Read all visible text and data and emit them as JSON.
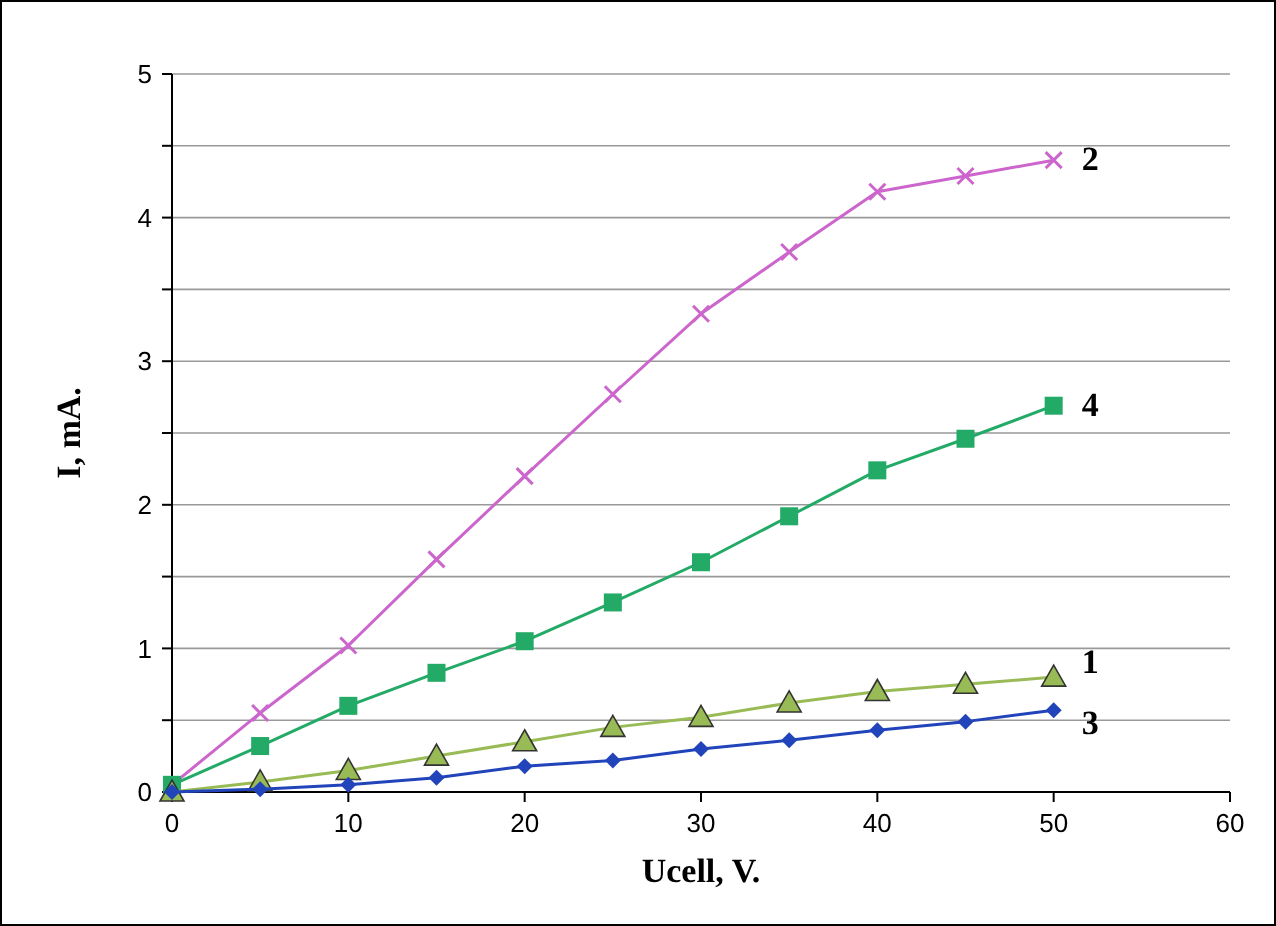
{
  "chart_data": {
    "type": "line",
    "xlabel": "Ucell, V.",
    "ylabel": "I, mA.",
    "x": [
      0,
      5,
      10,
      15,
      20,
      25,
      30,
      35,
      40,
      45,
      50
    ],
    "xlim": [
      0,
      60
    ],
    "xticks": [
      0,
      10,
      20,
      30,
      40,
      50,
      60
    ],
    "ylim": [
      0,
      5
    ],
    "yticks": [
      0,
      {
        "value": 0.5,
        "label": null
      },
      1,
      {
        "value": 1.5,
        "label": null
      },
      2,
      {
        "value": 2.5,
        "label": null
      },
      3,
      {
        "value": 3.5,
        "label": null
      },
      4,
      {
        "value": 4.5,
        "label": null
      },
      5
    ],
    "grid": "y",
    "legend": false,
    "series": [
      {
        "name": "2",
        "color": "#cc66cc",
        "marker": "cross",
        "values": [
          0.05,
          0.55,
          1.02,
          1.62,
          2.2,
          2.77,
          3.33,
          3.76,
          4.18,
          4.29,
          4.4
        ]
      },
      {
        "name": "4",
        "color": "#22aa66",
        "marker": "square",
        "values": [
          0.05,
          0.32,
          0.6,
          0.83,
          1.05,
          1.32,
          1.6,
          1.92,
          2.24,
          2.46,
          2.69
        ]
      },
      {
        "name": "1",
        "color": "#99bb55",
        "marker": "triangle",
        "values": [
          0,
          0.07,
          0.15,
          0.25,
          0.35,
          0.45,
          0.52,
          0.62,
          0.7,
          0.75,
          0.8
        ]
      },
      {
        "name": "3",
        "color": "#2244bb",
        "marker": "diamond",
        "values": [
          0,
          0.02,
          0.05,
          0.1,
          0.18,
          0.22,
          0.3,
          0.36,
          0.43,
          0.49,
          0.57
        ]
      }
    ]
  }
}
